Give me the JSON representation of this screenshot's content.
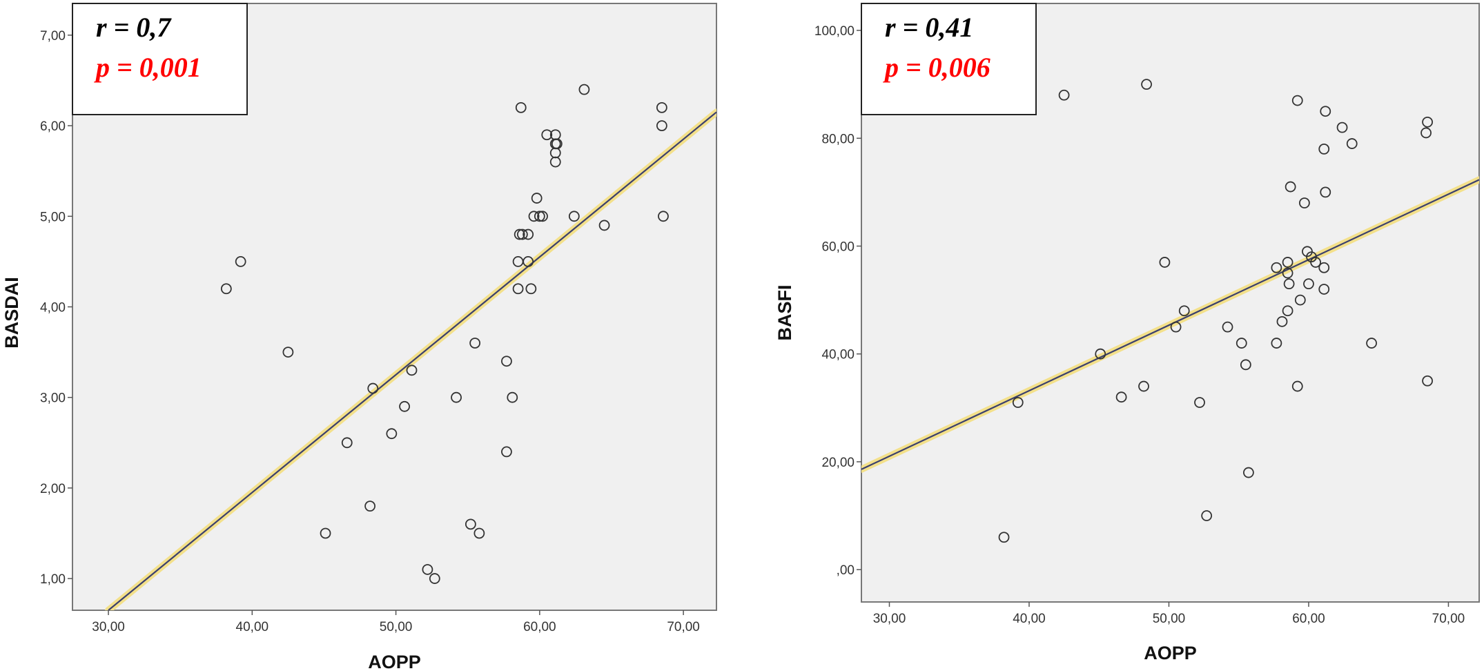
{
  "colors": {
    "plot_bg": "#f0f0f0",
    "frame": "#777777",
    "marker": "#333333",
    "fit_line": "#3a3f6e",
    "fit_halo": "#f3e08a",
    "p_value": "#ff0000"
  },
  "chart_data": [
    {
      "type": "scatter",
      "xlabel": "AOPP",
      "ylabel": "BASDAI",
      "xlim": [
        27.5,
        72.3
      ],
      "ylim": [
        0.65,
        7.35
      ],
      "xticks": [
        30,
        40,
        50,
        60,
        70
      ],
      "xtick_labels": [
        "30,00",
        "40,00",
        "50,00",
        "60,00",
        "70,00"
      ],
      "yticks": [
        1,
        2,
        3,
        4,
        5,
        6,
        7
      ],
      "ytick_labels": [
        "1,00",
        "2,00",
        "3,00",
        "4,00",
        "5,00",
        "6,00",
        "7,00"
      ],
      "grid": false,
      "stats": {
        "r": "r = 0,7",
        "p": "p = 0,001"
      },
      "fit_line": {
        "x": [
          30,
          72.3
        ],
        "y": [
          0.65,
          6.15
        ]
      },
      "points": [
        [
          38.2,
          4.2
        ],
        [
          39.2,
          4.5
        ],
        [
          42.5,
          3.5
        ],
        [
          45.1,
          1.5
        ],
        [
          46.6,
          2.5
        ],
        [
          48.2,
          1.8
        ],
        [
          48.4,
          3.1
        ],
        [
          49.7,
          2.6
        ],
        [
          50.6,
          2.9
        ],
        [
          51.1,
          3.3
        ],
        [
          52.2,
          1.1
        ],
        [
          52.7,
          1.0
        ],
        [
          54.2,
          3.0
        ],
        [
          55.2,
          1.6
        ],
        [
          55.5,
          3.6
        ],
        [
          55.8,
          1.5
        ],
        [
          57.7,
          3.4
        ],
        [
          57.7,
          2.4
        ],
        [
          58.1,
          3.0
        ],
        [
          58.5,
          4.2
        ],
        [
          58.5,
          4.5
        ],
        [
          58.6,
          4.8
        ],
        [
          58.8,
          4.8
        ],
        [
          58.7,
          6.2
        ],
        [
          59.2,
          4.8
        ],
        [
          59.2,
          4.5
        ],
        [
          59.4,
          4.2
        ],
        [
          59.6,
          5.0
        ],
        [
          59.8,
          5.2
        ],
        [
          60.0,
          5.0
        ],
        [
          60.2,
          5.0
        ],
        [
          60.5,
          5.9
        ],
        [
          61.1,
          5.9
        ],
        [
          61.1,
          5.8
        ],
        [
          61.2,
          5.8
        ],
        [
          61.1,
          5.7
        ],
        [
          61.1,
          5.6
        ],
        [
          62.4,
          5.0
        ],
        [
          63.1,
          6.4
        ],
        [
          64.5,
          4.9
        ],
        [
          68.5,
          6.2
        ],
        [
          68.5,
          6.0
        ],
        [
          68.6,
          5.0
        ]
      ]
    },
    {
      "type": "scatter",
      "xlabel": "AOPP",
      "ylabel": "BASFI",
      "xlim": [
        28,
        72.2
      ],
      "ylim": [
        -6,
        105
      ],
      "xticks": [
        30,
        40,
        50,
        60,
        70
      ],
      "xtick_labels": [
        "30,00",
        "40,00",
        "50,00",
        "60,00",
        "70,00"
      ],
      "yticks": [
        0,
        20,
        40,
        60,
        80,
        100
      ],
      "ytick_labels": [
        ",00",
        "20,00",
        "40,00",
        "60,00",
        "80,00",
        "100,00"
      ],
      "grid": false,
      "stats": {
        "r": "r = 0,41",
        "p": "p = 0,006"
      },
      "fit_line": {
        "x": [
          28,
          72.2
        ],
        "y": [
          18.6,
          72.3
        ]
      },
      "points": [
        [
          38.2,
          6
        ],
        [
          39.2,
          31
        ],
        [
          42.5,
          88
        ],
        [
          45.1,
          40
        ],
        [
          46.6,
          32
        ],
        [
          48.2,
          34
        ],
        [
          48.4,
          90
        ],
        [
          49.7,
          57
        ],
        [
          50.5,
          45
        ],
        [
          51.1,
          48
        ],
        [
          52.2,
          31
        ],
        [
          52.7,
          10
        ],
        [
          54.2,
          45
        ],
        [
          55.2,
          42
        ],
        [
          55.5,
          38
        ],
        [
          55.7,
          18
        ],
        [
          57.7,
          42
        ],
        [
          57.7,
          56
        ],
        [
          58.1,
          46
        ],
        [
          58.5,
          57
        ],
        [
          58.5,
          55
        ],
        [
          58.6,
          53
        ],
        [
          58.5,
          48
        ],
        [
          58.7,
          71
        ],
        [
          59.2,
          34
        ],
        [
          59.2,
          87
        ],
        [
          59.4,
          50
        ],
        [
          59.7,
          68
        ],
        [
          59.9,
          59
        ],
        [
          60.0,
          53
        ],
        [
          60.2,
          58
        ],
        [
          60.5,
          57
        ],
        [
          61.1,
          52
        ],
        [
          61.1,
          56
        ],
        [
          61.1,
          78
        ],
        [
          61.2,
          70
        ],
        [
          61.2,
          85
        ],
        [
          62.4,
          82
        ],
        [
          63.1,
          79
        ],
        [
          64.5,
          42
        ],
        [
          68.4,
          81
        ],
        [
          68.5,
          83
        ],
        [
          68.5,
          35
        ]
      ]
    }
  ]
}
